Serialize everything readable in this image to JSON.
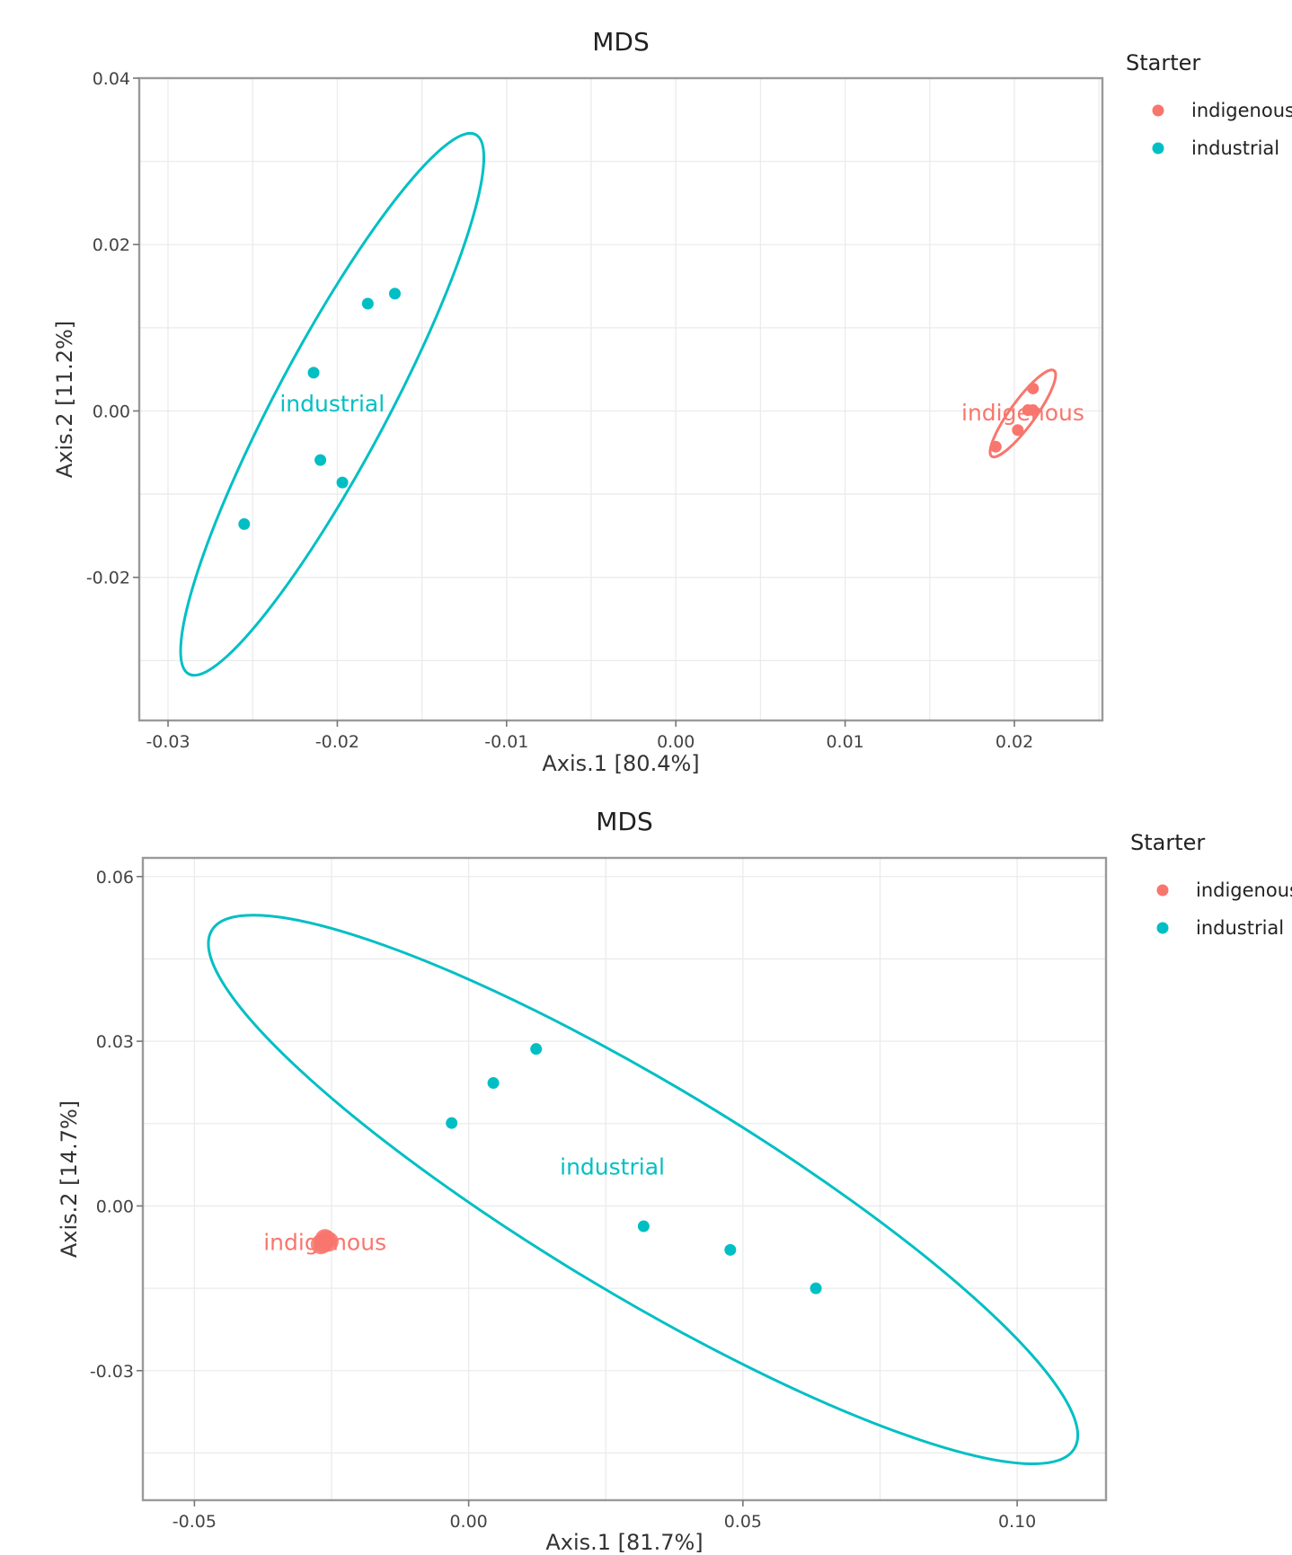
{
  "chart_data": [
    {
      "type": "scatter",
      "title": "MDS",
      "xlabel": "Axis.1   [80.4%]",
      "ylabel": "Axis.2   [11.2%]",
      "xlim": [
        -0.0317,
        0.0252
      ],
      "ylim": [
        -0.0372,
        0.04
      ],
      "xticks": [
        -0.03,
        -0.02,
        -0.01,
        0.0,
        0.01,
        0.02
      ],
      "xtick_labels": [
        "-0.03",
        "-0.02",
        "-0.01",
        "0.00",
        "0.01",
        "0.02"
      ],
      "yticks": [
        -0.02,
        0.0,
        0.02,
        0.04
      ],
      "ytick_labels": [
        "-0.02",
        "0.00",
        "0.02",
        "0.04"
      ],
      "grid": true,
      "legend": {
        "title": "Starter",
        "placement": "right",
        "labels": [
          "indigenous",
          "industrial"
        ]
      },
      "series": [
        {
          "name": "indigenous",
          "color": "#F8766D",
          "label": "indigenous",
          "label_pos": [
            0.0205,
            -0.0003
          ],
          "points": [
            [
              0.0211,
              0.0027
            ],
            [
              0.0208,
              0.0001
            ],
            [
              0.0211,
              0.0001
            ],
            [
              0.0202,
              -0.0023
            ],
            [
              0.0189,
              -0.0043
            ]
          ],
          "ellipse": {
            "center": [
              0.0205,
              -0.0003
            ],
            "rx": 0.0026,
            "ry": 0.0114,
            "orientation": "upper-right"
          }
        },
        {
          "name": "industrial",
          "color": "#00BFC4",
          "label": "industrial",
          "label_pos": [
            -0.0203,
            0.0008
          ],
          "points": [
            [
              -0.0166,
              0.0141
            ],
            [
              -0.0182,
              0.0129
            ],
            [
              -0.0214,
              0.0046
            ],
            [
              -0.021,
              -0.0059
            ],
            [
              -0.0197,
              -0.0086
            ],
            [
              -0.0255,
              -0.0136
            ]
          ],
          "ellipse": {
            "center": [
              -0.0203,
              0.0008
            ],
            "rx": 0.0078,
            "ry": 0.0706,
            "orientation": "upper-right"
          }
        }
      ]
    },
    {
      "type": "scatter",
      "title": "MDS",
      "xlabel": "Axis.1   [81.7%]",
      "ylabel": "Axis.2   [14.7%]",
      "xlim": [
        -0.0594,
        0.1162
      ],
      "ylim": [
        -0.0536,
        0.0634
      ],
      "xticks": [
        -0.05,
        0.0,
        0.05,
        0.1
      ],
      "xtick_labels": [
        "-0.05",
        "0.00",
        "0.05",
        "0.10"
      ],
      "yticks": [
        -0.03,
        0.0,
        0.03,
        0.06
      ],
      "ytick_labels": [
        "-0.03",
        "0.00",
        "0.03",
        "0.06"
      ],
      "grid": true,
      "legend": {
        "title": "Starter",
        "placement": "right",
        "labels": [
          "indigenous",
          "industrial"
        ]
      },
      "series": [
        {
          "name": "indigenous",
          "color": "#F8766D",
          "label": "indigenous",
          "label_pos": [
            -0.0262,
            -0.0067
          ],
          "points": [
            [
              -0.026,
              -0.0062
            ],
            [
              -0.0265,
              -0.0068
            ],
            [
              -0.027,
              -0.007
            ],
            [
              -0.0255,
              -0.0065
            ],
            [
              -0.0262,
              -0.006
            ]
          ],
          "ellipse": null
        },
        {
          "name": "industrial",
          "color": "#00BFC4",
          "label": "industrial",
          "label_pos": [
            0.0262,
            0.007
          ],
          "points": [
            [
              0.0123,
              0.0286
            ],
            [
              0.0045,
              0.0224
            ],
            [
              -0.0031,
              0.0151
            ],
            [
              0.0319,
              -0.0037
            ],
            [
              0.0477,
              -0.008
            ],
            [
              0.0633,
              -0.015
            ]
          ],
          "ellipse": {
            "center": [
              0.0318,
              0.003
            ],
            "rx": 0.0875,
            "ry": 0.0206,
            "orientation": "upper-left"
          }
        }
      ]
    }
  ]
}
